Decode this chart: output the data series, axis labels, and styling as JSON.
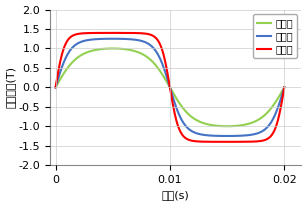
{
  "xlabel": "時刻(s)",
  "ylabel": "磁束密度(T)",
  "xlim": [
    -0.0005,
    0.0215
  ],
  "ylim": [
    -2.0,
    2.0
  ],
  "yticks": [
    -2.0,
    -1.5,
    -1.0,
    -0.5,
    0.0,
    0.5,
    1.0,
    1.5,
    2.0
  ],
  "xticks": [
    0,
    0.01,
    0.02
  ],
  "xtick_labels": [
    "0",
    "0.01",
    "0.02"
  ],
  "series": [
    {
      "label": "電流小",
      "color": "#92d050",
      "amplitude": 1.0,
      "k": 1.5
    },
    {
      "label": "電流中",
      "color": "#4472c4",
      "amplitude": 1.25,
      "k": 2.5
    },
    {
      "label": "電流大",
      "color": "#ff0000",
      "amplitude": 1.4,
      "k": 4.0
    }
  ],
  "legend_loc": "upper right",
  "grid": true,
  "background_color": "#ffffff",
  "font_size": 8,
  "line_width": 1.5
}
